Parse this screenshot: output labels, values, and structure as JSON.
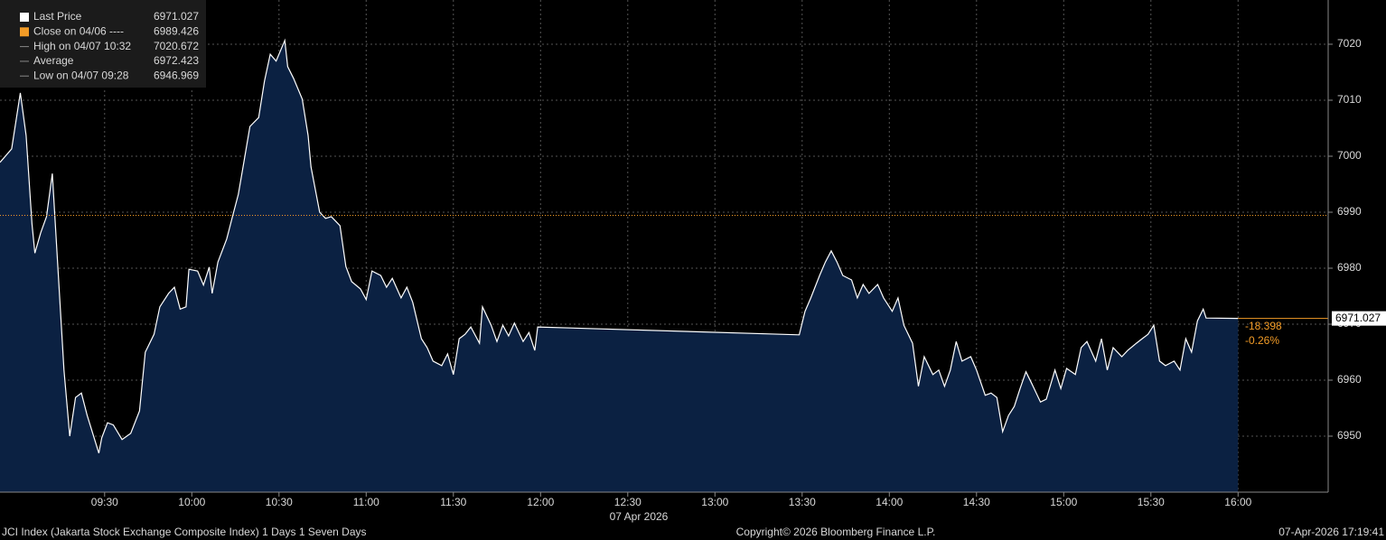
{
  "chart_data": {
    "type": "line",
    "x": [
      "08:54",
      "08:58",
      "09:01",
      "09:03",
      "09:05",
      "09:06",
      "09:08",
      "09:10",
      "09:12",
      "09:14",
      "09:16",
      "09:18",
      "09:20",
      "09:22",
      "09:24",
      "09:28",
      "09:29",
      "09:31",
      "09:33",
      "09:36",
      "09:39",
      "09:42",
      "09:44",
      "09:47",
      "09:49",
      "09:52",
      "09:54",
      "09:56",
      "09:58",
      "09:59",
      "10:02",
      "10:04",
      "10:06",
      "10:07",
      "10:09",
      "10:12",
      "10:14",
      "10:16",
      "10:18",
      "10:20",
      "10:23",
      "10:25",
      "10:27",
      "10:29",
      "10:32",
      "10:33",
      "10:35",
      "10:38",
      "10:40",
      "10:41",
      "10:44",
      "10:46",
      "10:48",
      "10:51",
      "10:53",
      "10:55",
      "10:58",
      "11:00",
      "11:02",
      "11:05",
      "11:07",
      "11:09",
      "11:12",
      "11:14",
      "11:16",
      "11:19",
      "11:21",
      "11:23",
      "11:26",
      "11:28",
      "11:30",
      "11:32",
      "11:34",
      "11:36",
      "11:39",
      "11:40",
      "11:43",
      "11:45",
      "11:47",
      "11:49",
      "11:51",
      "11:54",
      "11:56",
      "11:58",
      "11:59",
      "13:29",
      "13:31",
      "13:33",
      "13:36",
      "13:38",
      "13:40",
      "13:42",
      "13:44",
      "13:47",
      "13:49",
      "13:51",
      "13:53",
      "13:56",
      "13:58",
      "14:01",
      "14:03",
      "14:05",
      "14:08",
      "14:10",
      "14:12",
      "14:15",
      "14:17",
      "14:19",
      "14:21",
      "14:23",
      "14:25",
      "14:28",
      "14:30",
      "14:33",
      "14:35",
      "14:37",
      "14:39",
      "14:41",
      "14:43",
      "14:45",
      "14:47",
      "14:49",
      "14:52",
      "14:54",
      "14:57",
      "14:59",
      "15:01",
      "15:04",
      "15:06",
      "15:08",
      "15:11",
      "15:13",
      "15:15",
      "15:17",
      "15:20",
      "15:22",
      "15:25",
      "15:27",
      "15:29",
      "15:31",
      "15:33",
      "15:35",
      "15:38",
      "15:40",
      "15:42",
      "15:44",
      "15:46",
      "15:48",
      "15:49",
      "16:00"
    ],
    "series": [
      {
        "name": "Last Price",
        "color": "#ffffff",
        "fill": "#0b2142",
        "values": [
          6998.9,
          7001.3,
          7011.3,
          7003.7,
          6987.9,
          6982.7,
          6986.3,
          6989.2,
          6996.9,
          6979.5,
          6961.8,
          6950,
          6956.9,
          6957.7,
          6953.7,
          6946.969,
          6949.7,
          6952.4,
          6952,
          6949.4,
          6950.5,
          6954.5,
          6965,
          6968.2,
          6973.1,
          6975.5,
          6976.6,
          6972.7,
          6973.1,
          6979.8,
          6979.5,
          6977,
          6980.2,
          6975.5,
          6981.1,
          6985.2,
          6989.2,
          6993.2,
          6999.2,
          7005.3,
          7006.9,
          7013.4,
          7018.2,
          7017,
          7020.672,
          7016,
          7013.9,
          7010.2,
          7003.7,
          6998.1,
          6990,
          6988.9,
          6989.2,
          6987.6,
          6980.3,
          6977.6,
          6976.3,
          6974.4,
          6979.5,
          6978.7,
          6976.6,
          6978.2,
          6974.7,
          6976.6,
          6973.9,
          6967.4,
          6965.8,
          6963.4,
          6962.6,
          6964.7,
          6961,
          6967.4,
          6968.2,
          6969.5,
          6966.6,
          6973.1,
          6969.8,
          6966.9,
          6969.8,
          6967.9,
          6970.2,
          6966.9,
          6968.5,
          6965.3,
          6969.5,
          6968.1,
          6972.3,
          6974.7,
          6978.7,
          6981.1,
          6983.1,
          6981.1,
          6978.7,
          6977.9,
          6974.7,
          6977.1,
          6975.5,
          6977.1,
          6974.7,
          6972.3,
          6974.7,
          6969.8,
          6966.6,
          6958.9,
          6964.2,
          6961,
          6961.8,
          6958.9,
          6961.8,
          6966.9,
          6963.4,
          6964.2,
          6961.8,
          6957.3,
          6957.7,
          6956.9,
          6950.8,
          6953.7,
          6955.3,
          6958.5,
          6961.5,
          6959.4,
          6956.1,
          6956.6,
          6961.8,
          6958.5,
          6962.1,
          6961,
          6965.8,
          6966.9,
          6963.4,
          6967.4,
          6961.8,
          6965.8,
          6964.2,
          6965.3,
          6966.6,
          6967.4,
          6968.2,
          6969.8,
          6963.4,
          6962.6,
          6963.4,
          6961.8,
          6967.4,
          6965,
          6970.6,
          6972.7,
          6971.1,
          6971.027
        ]
      }
    ],
    "xlim": [
      "08:54",
      "16:31"
    ],
    "xticks": [
      "09:30",
      "10:00",
      "10:30",
      "11:00",
      "11:30",
      "12:00",
      "12:30",
      "13:00",
      "13:30",
      "14:00",
      "14:30",
      "15:00",
      "15:30",
      "16:00"
    ],
    "xlabel": "07 Apr 2026",
    "ylim": [
      6940,
      7027.9
    ],
    "yticks": [
      6950,
      6960,
      6970,
      6980,
      6990,
      7000,
      7010,
      7020
    ],
    "grid": true,
    "legend": {
      "items": [
        {
          "label": "Last Price",
          "value": 6971.027,
          "color": "#ffffff"
        },
        {
          "label": "Close on 04/06 ----",
          "value": 6989.426,
          "color": "#f39c27"
        },
        {
          "label": "High on 04/07 10:32",
          "value": 7020.672
        },
        {
          "label": "Average",
          "value": 6972.423
        },
        {
          "label": "Low on 04/07 09:28",
          "value": 6946.969
        }
      ]
    },
    "change": -18.398,
    "change_pct": "-0.26%",
    "change_color": "#f39c27"
  },
  "footer": {
    "left": "JCI Index (Jakarta Stock Exchange Composite Index) 1 Days 1 Seven Days",
    "center": "Copyright© 2026 Bloomberg Finance L.P.",
    "right": "07-Apr-2026 17:19:41"
  }
}
